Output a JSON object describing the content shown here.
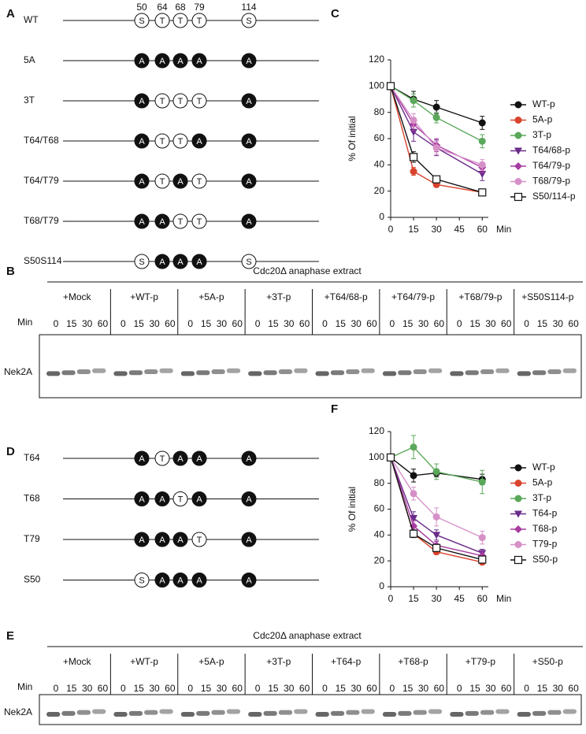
{
  "panel_a": {
    "label": "A",
    "positions": [
      "50",
      "64",
      "68",
      "79",
      "114"
    ],
    "constructs": [
      {
        "name": "WT",
        "sites": [
          "S",
          "T",
          "T",
          "T",
          "S"
        ]
      },
      {
        "name": "5A",
        "sites": [
          "A",
          "A",
          "A",
          "A",
          "A"
        ]
      },
      {
        "name": "3T",
        "sites": [
          "A",
          "T",
          "T",
          "T",
          "A"
        ]
      },
      {
        "name": "T64/T68",
        "sites": [
          "A",
          "T",
          "T",
          "A",
          "A"
        ]
      },
      {
        "name": "T64/T79",
        "sites": [
          "A",
          "T",
          "A",
          "T",
          "A"
        ]
      },
      {
        "name": "T68/T79",
        "sites": [
          "A",
          "A",
          "T",
          "T",
          "A"
        ]
      },
      {
        "name": "S50S114",
        "sites": [
          "S",
          "A",
          "A",
          "A",
          "S"
        ]
      }
    ]
  },
  "panel_b": {
    "label": "B",
    "title": "Cdc20Δ anaphase extract",
    "lanes": [
      "+Mock",
      "+WT-p",
      "+5A-p",
      "+3T-p",
      "+T64/68-p",
      "+T64/79-p",
      "+T68/79-p",
      "+S50S114-p"
    ],
    "time_label": "Min",
    "times": [
      "0",
      "15",
      "30",
      "60"
    ],
    "protein": "Nek2A"
  },
  "panel_d": {
    "label": "D",
    "constructs": [
      {
        "name": "T64",
        "sites": [
          "A",
          "T",
          "A",
          "A",
          "A"
        ]
      },
      {
        "name": "T68",
        "sites": [
          "A",
          "A",
          "T",
          "A",
          "A"
        ]
      },
      {
        "name": "T79",
        "sites": [
          "A",
          "A",
          "A",
          "T",
          "A"
        ]
      },
      {
        "name": "S50",
        "sites": [
          "S",
          "A",
          "A",
          "A",
          "A"
        ]
      }
    ]
  },
  "panel_e": {
    "label": "E",
    "title": "Cdc20Δ anaphase extract",
    "lanes": [
      "+Mock",
      "+WT-p",
      "+5A-p",
      "+3T-p",
      "+T64-p",
      "+T68-p",
      "+T79-p",
      "+S50-p"
    ],
    "time_label": "Min",
    "times": [
      "0",
      "15",
      "30",
      "60"
    ],
    "protein": "Nek2A"
  },
  "chart_data": [
    {
      "type": "line",
      "label": "C",
      "y_label": "% Of initial",
      "x_label": "Min",
      "x": [
        0,
        15,
        30,
        60
      ],
      "xlim": [
        0,
        64
      ],
      "xticks": [
        0,
        15,
        30,
        45,
        60
      ],
      "ylim": [
        0,
        120
      ],
      "yticks": [
        0,
        20,
        40,
        60,
        80,
        100,
        120
      ],
      "series": [
        {
          "name": "WT-p",
          "color": "#111111",
          "marker": "circle",
          "values": [
            100,
            90,
            84,
            72
          ],
          "errors": [
            0,
            6,
            5,
            5
          ]
        },
        {
          "name": "5A-p",
          "color": "#d9432c",
          "marker": "circle",
          "values": [
            100,
            35,
            25,
            19
          ],
          "errors": [
            0,
            3,
            2,
            1
          ]
        },
        {
          "name": "3T-p",
          "color": "#5aa85a",
          "marker": "circle",
          "values": [
            100,
            89,
            76,
            58
          ],
          "errors": [
            0,
            5,
            4,
            5
          ]
        },
        {
          "name": "T64/68-p",
          "color": "#6a2c8a",
          "marker": "triangle",
          "values": [
            100,
            65,
            53,
            33
          ],
          "errors": [
            0,
            7,
            6,
            5
          ]
        },
        {
          "name": "T64/79-p",
          "color": "#a83ca0",
          "marker": "diamond",
          "values": [
            100,
            71,
            55,
            38
          ],
          "errors": [
            0,
            5,
            5,
            4
          ]
        },
        {
          "name": "T68/79-p",
          "color": "#d690c8",
          "marker": "circle",
          "values": [
            100,
            74,
            53,
            40
          ],
          "errors": [
            0,
            5,
            5,
            4
          ]
        },
        {
          "name": "S50/114-p",
          "color": "#111111",
          "marker": "square",
          "values": [
            100,
            46,
            29,
            19
          ],
          "errors": [
            0,
            4,
            2,
            2
          ]
        }
      ]
    },
    {
      "type": "line",
      "label": "F",
      "y_label": "% Of initial",
      "x_label": "Min",
      "x": [
        0,
        15,
        30,
        60
      ],
      "xlim": [
        0,
        64
      ],
      "xticks": [
        0,
        15,
        30,
        45,
        60
      ],
      "ylim": [
        0,
        120
      ],
      "yticks": [
        0,
        20,
        40,
        60,
        80,
        100,
        120
      ],
      "series": [
        {
          "name": "WT-p",
          "color": "#111111",
          "marker": "circle",
          "values": [
            100,
            86,
            88,
            83
          ],
          "errors": [
            0,
            5,
            3,
            4
          ]
        },
        {
          "name": "5A-p",
          "color": "#d9432c",
          "marker": "circle",
          "values": [
            100,
            41,
            27,
            19
          ],
          "errors": [
            0,
            2,
            2,
            1
          ]
        },
        {
          "name": "3T-p",
          "color": "#5aa85a",
          "marker": "circle",
          "values": [
            100,
            108,
            89,
            81
          ],
          "errors": [
            0,
            9,
            6,
            9
          ]
        },
        {
          "name": "T64-p",
          "color": "#6a2c8a",
          "marker": "triangle",
          "values": [
            100,
            53,
            40,
            26
          ],
          "errors": [
            0,
            5,
            4,
            3
          ]
        },
        {
          "name": "T68-p",
          "color": "#a83ca0",
          "marker": "diamond",
          "values": [
            100,
            47,
            32,
            24
          ],
          "errors": [
            0,
            4,
            3,
            3
          ]
        },
        {
          "name": "T79-p",
          "color": "#d690c8",
          "marker": "circle",
          "values": [
            100,
            72,
            54,
            38
          ],
          "errors": [
            0,
            5,
            7,
            5
          ]
        },
        {
          "name": "S50-p",
          "color": "#111111",
          "marker": "square",
          "values": [
            100,
            41,
            30,
            21
          ],
          "errors": [
            0,
            3,
            2,
            2
          ]
        }
      ]
    }
  ]
}
